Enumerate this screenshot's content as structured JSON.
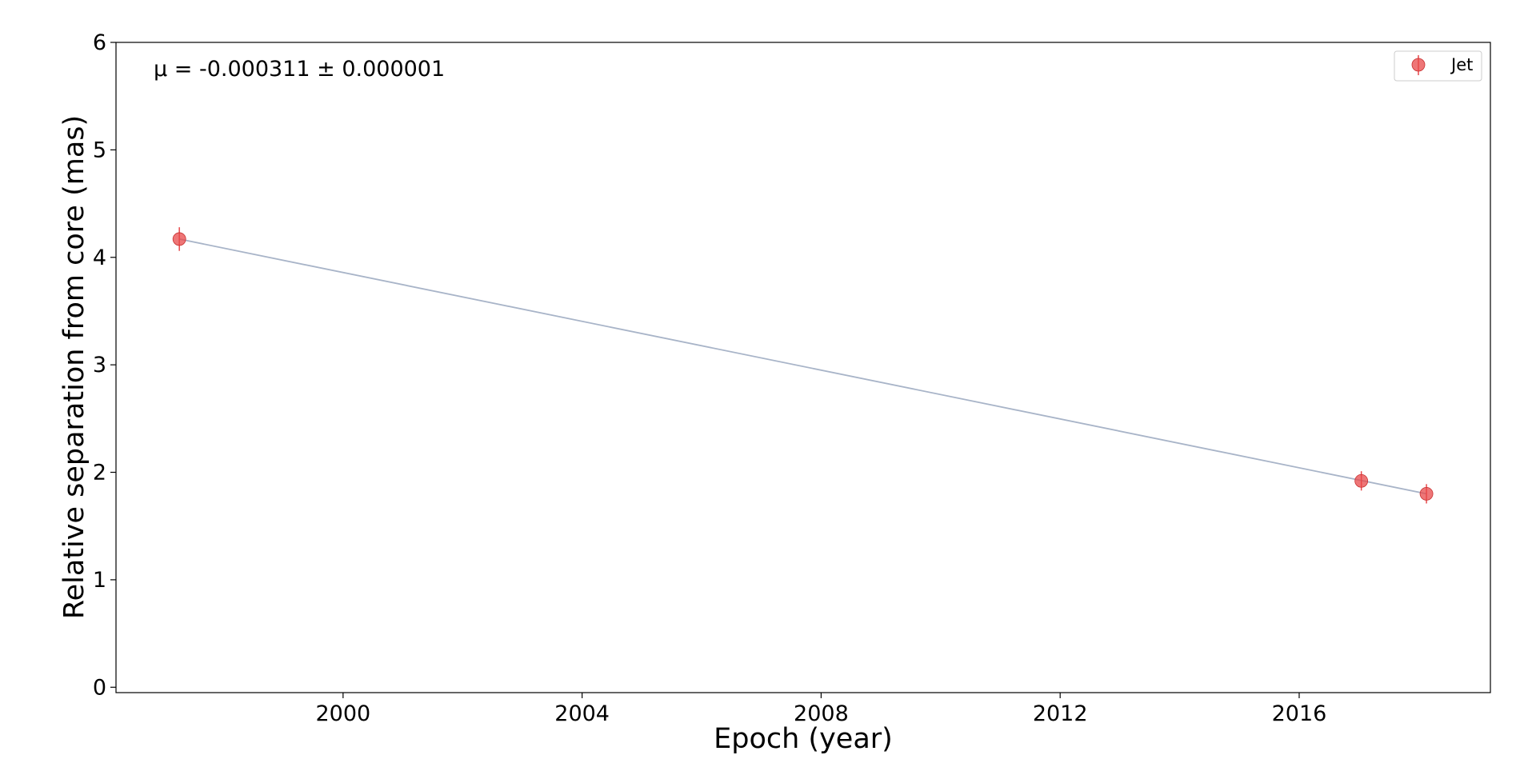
{
  "chart_data": {
    "type": "scatter",
    "xlabel": "Epoch (year)",
    "ylabel": "Relative separation from core (mas)",
    "xlim": [
      1996.2,
      2019.2
    ],
    "ylim": [
      -0.05,
      6
    ],
    "x_ticks": [
      2000,
      2004,
      2008,
      2012,
      2016
    ],
    "y_ticks": [
      0,
      1,
      2,
      3,
      4,
      5,
      6
    ],
    "annotation": "μ = -0.000311 ± 0.000001",
    "legend_position": "top-right",
    "grid": false,
    "series": [
      {
        "name": "Jet",
        "marker": "circle",
        "color": "#e8484a",
        "x": [
          1997.26,
          2017.04,
          2018.13
        ],
        "y": [
          4.17,
          1.92,
          1.8
        ],
        "yerr": [
          0.11,
          0.09,
          0.09
        ]
      }
    ],
    "fit_line": {
      "color": "#a8b4c8",
      "x": [
        1997.26,
        2018.13
      ],
      "y": [
        4.17,
        1.8
      ]
    }
  }
}
